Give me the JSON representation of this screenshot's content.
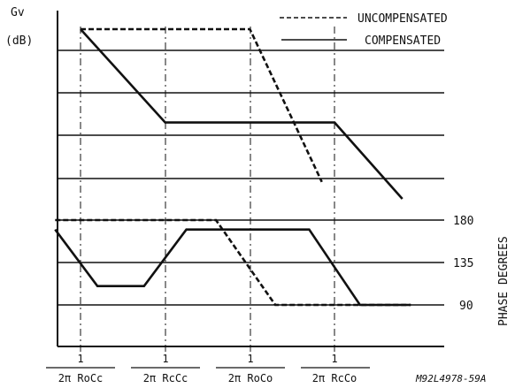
{
  "chart_data": [
    {
      "type": "line",
      "ylabel_lines": [
        "Gv",
        "(dB)"
      ],
      "legend": [
        {
          "label": "UNCOMPENSATED",
          "style": "dashed"
        },
        {
          "label": "COMPENSATED",
          "style": "solid"
        }
      ],
      "x_ticks": [
        {
          "num": "1",
          "den": "2π RoCc"
        },
        {
          "num": "1",
          "den": "2π RcCc"
        },
        {
          "num": "1",
          "den": "2π RoCo"
        },
        {
          "num": "1",
          "den": "2π RcCo"
        }
      ],
      "series": [
        {
          "name": "UNCOMPENSATED",
          "x": [
            0,
            2,
            2.85
          ],
          "y": [
            0,
            0,
            -3.6
          ]
        },
        {
          "name": "COMPENSATED",
          "x": [
            0,
            1,
            2,
            3,
            3.8
          ],
          "y": [
            0,
            -2.2,
            -2.2,
            -2.2,
            -4.0
          ]
        }
      ]
    },
    {
      "type": "line",
      "ylabel": "PHASE DEGREES",
      "y_ticks": [
        "180",
        "135",
        "90"
      ],
      "ylim": [
        90,
        180
      ],
      "series": [
        {
          "name": "UNCOMPENSATED",
          "x": [
            -0.3,
            1.6,
            2.3,
            3.9
          ],
          "y": [
            180,
            180,
            90,
            90
          ]
        },
        {
          "name": "COMPENSATED",
          "x": [
            -0.3,
            0.2,
            0.75,
            1.25,
            2.7,
            3.3,
            3.9
          ],
          "y": [
            170,
            110,
            110,
            170,
            170,
            90,
            90
          ]
        }
      ]
    }
  ],
  "figure_code": "M92L4978-59A"
}
